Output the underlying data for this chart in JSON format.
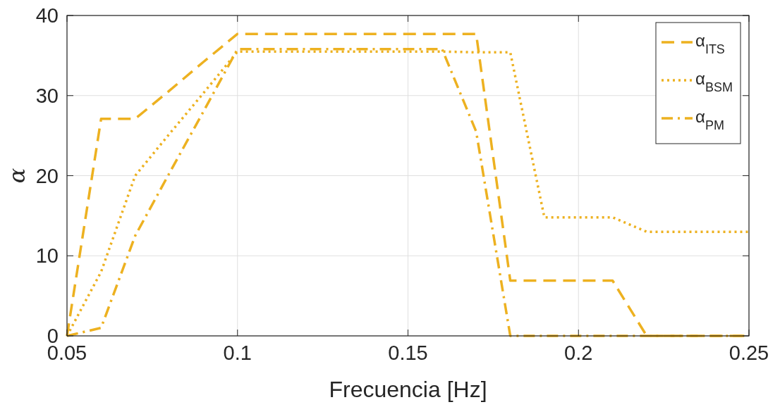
{
  "chart_data": {
    "type": "line",
    "xlabel": "Frecuencia [Hz]",
    "ylabel": "α",
    "xlim": [
      0.05,
      0.25
    ],
    "xticks": [
      0.05,
      0.1,
      0.15,
      0.2,
      0.25
    ],
    "ylim": [
      0,
      40
    ],
    "yticks": [
      0,
      10,
      20,
      30,
      40
    ],
    "grid": true,
    "legend": "top right",
    "marker": "none",
    "x": [
      0.05,
      0.06,
      0.07,
      0.08,
      0.09,
      0.1,
      0.11,
      0.12,
      0.13,
      0.14,
      0.15,
      0.16,
      0.17,
      0.18,
      0.19,
      0.2,
      0.21,
      0.22,
      0.23,
      0.24,
      0.25
    ],
    "series": [
      {
        "name": "α$_{ITS}$",
        "color": "#edb120",
        "line_style": "dashed",
        "values": [
          0,
          27.1,
          27.1,
          30.6,
          34.2,
          37.7,
          37.7,
          37.7,
          37.7,
          37.7,
          37.7,
          37.7,
          37.7,
          6.9,
          6.9,
          6.9,
          6.9,
          0,
          0,
          0,
          0
        ]
      },
      {
        "name": "α$_{BSM}$",
        "color": "#edb120",
        "line_style": "dotted",
        "values": [
          0,
          8,
          20,
          25.2,
          30.3,
          35.5,
          35.5,
          35.5,
          35.5,
          35.5,
          35.5,
          35.5,
          35.4,
          35.4,
          14.8,
          14.8,
          14.8,
          13,
          13,
          13,
          13
        ]
      },
      {
        "name": "α$_{PM}$",
        "color": "#edb120",
        "line_style": "dashdot",
        "values": [
          0,
          1,
          12.5,
          20.3,
          28,
          35.8,
          35.8,
          35.8,
          35.8,
          35.8,
          35.8,
          35.8,
          25.5,
          0,
          0,
          0,
          0,
          0,
          0,
          0,
          0
        ]
      }
    ]
  }
}
